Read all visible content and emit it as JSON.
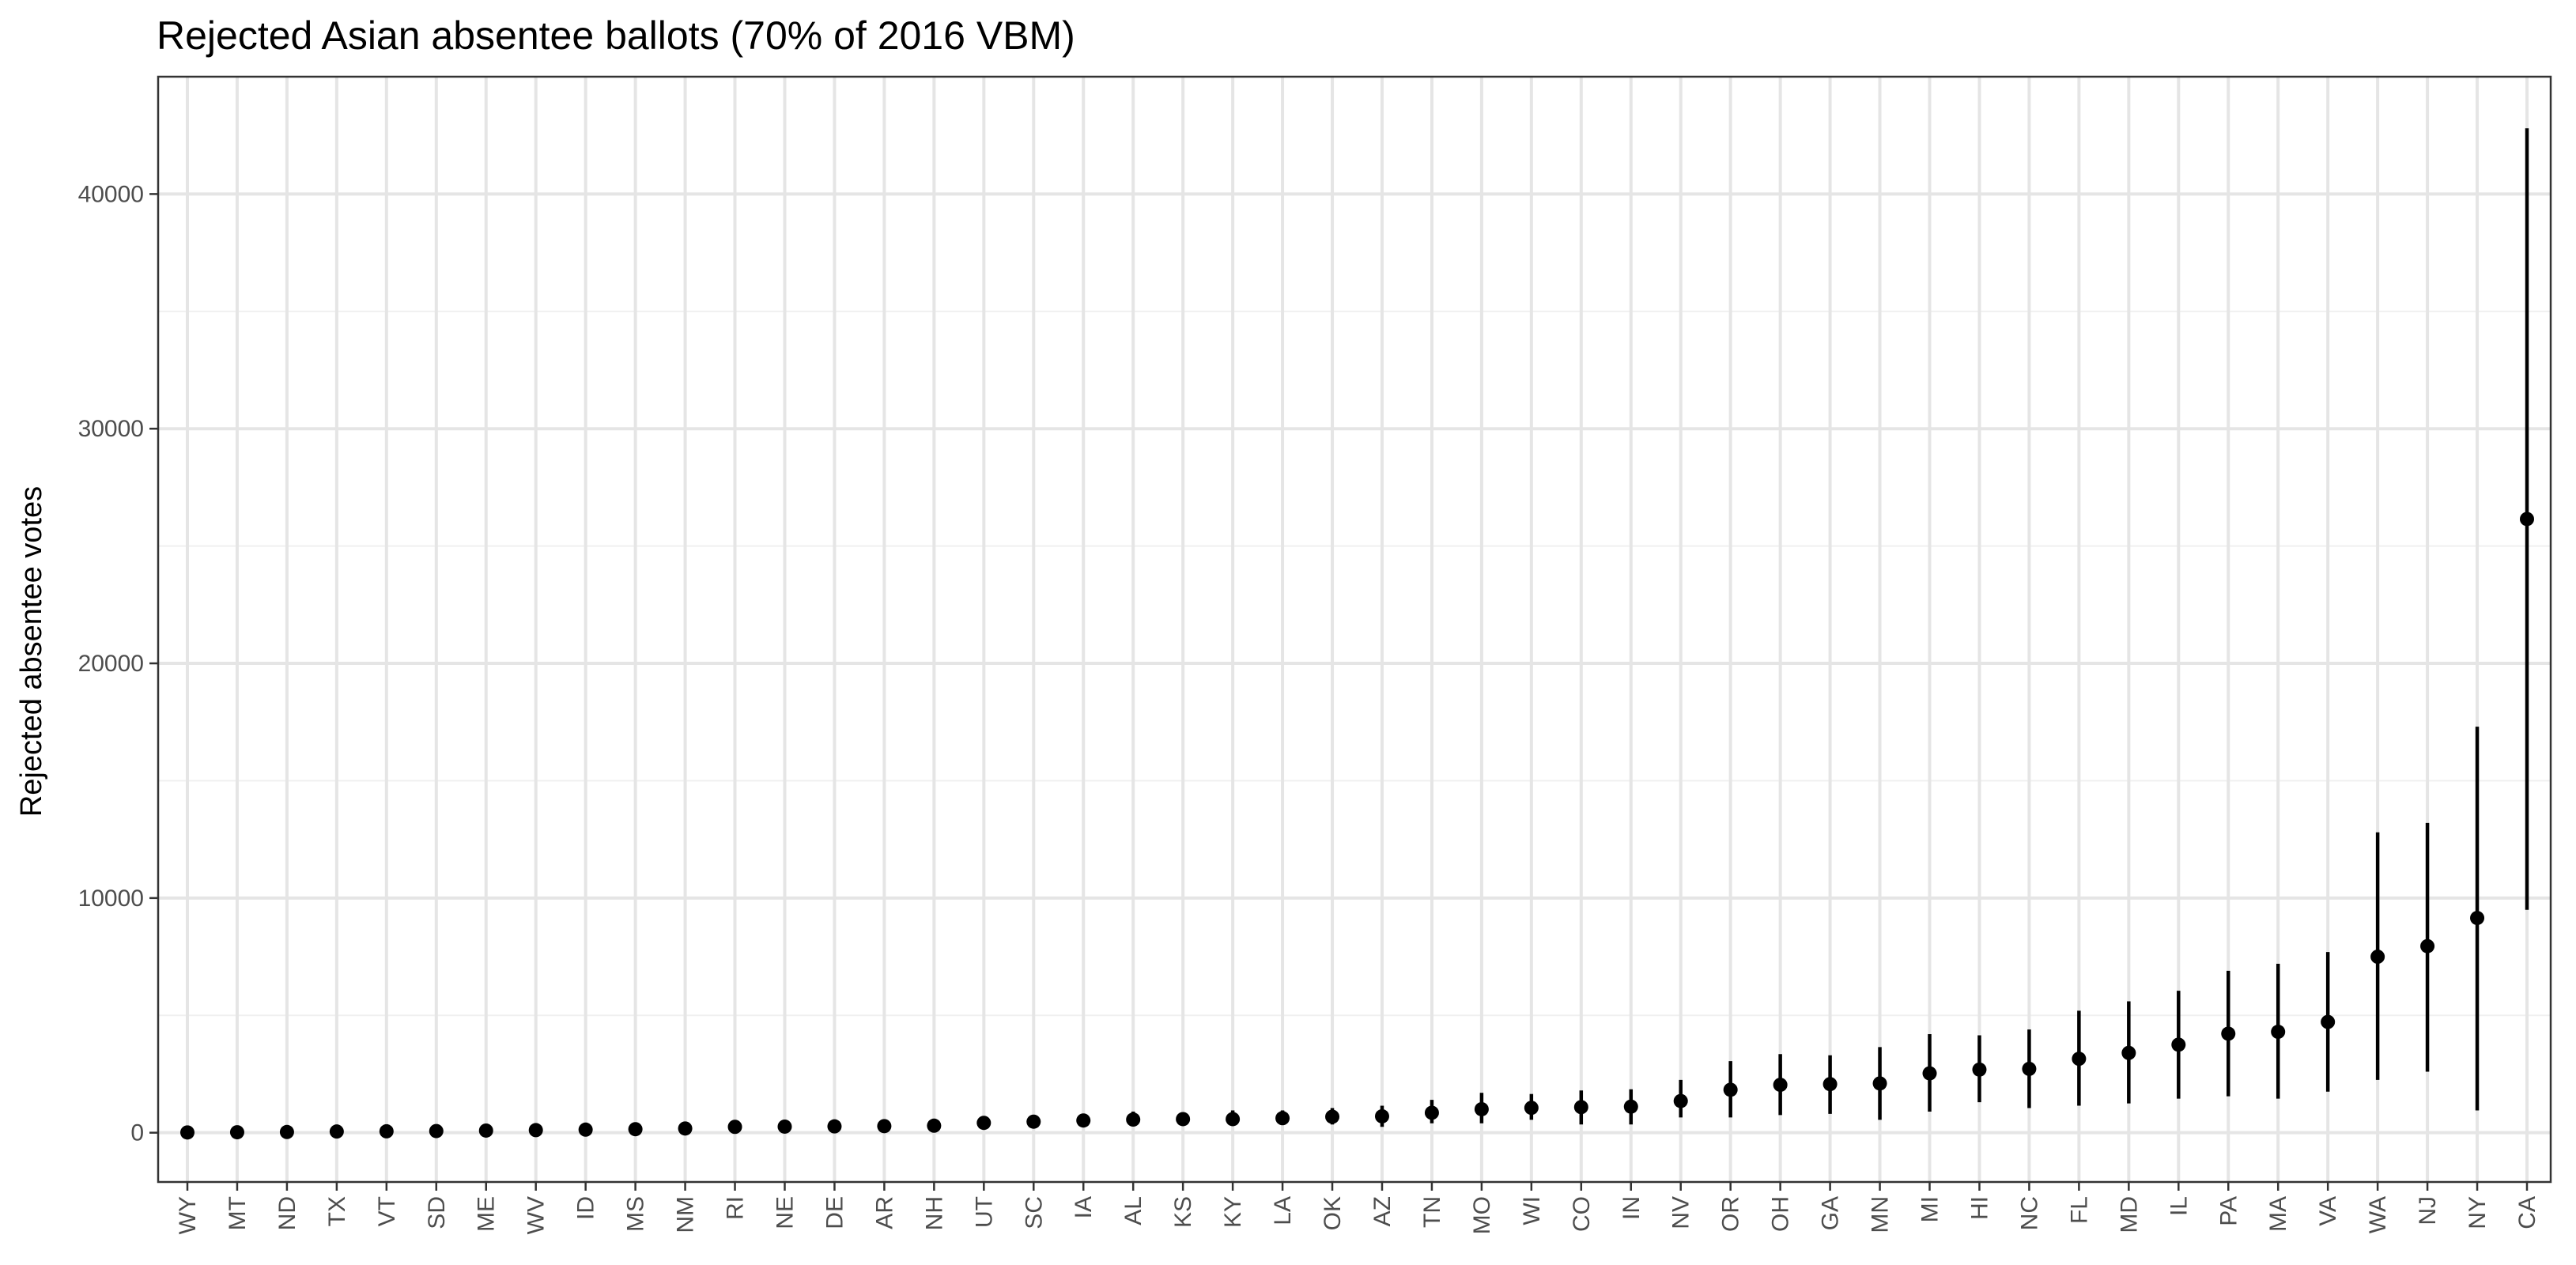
{
  "chart_data": {
    "type": "scatter",
    "title": "Rejected Asian absentee ballots (70% of 2016 VBM)",
    "xlabel": "",
    "ylabel": "Rejected absentee votes",
    "ylim": [
      -2100,
      45000
    ],
    "yticks": [
      0,
      10000,
      20000,
      30000,
      40000
    ],
    "grid": true,
    "categories": [
      "WY",
      "MT",
      "ND",
      "TX",
      "VT",
      "SD",
      "ME",
      "WV",
      "ID",
      "MS",
      "NM",
      "RI",
      "NE",
      "DE",
      "AR",
      "NH",
      "UT",
      "SC",
      "IA",
      "AL",
      "KS",
      "KY",
      "LA",
      "OK",
      "AZ",
      "TN",
      "MO",
      "WI",
      "CO",
      "IN",
      "NV",
      "OR",
      "OH",
      "GA",
      "MN",
      "MI",
      "HI",
      "NC",
      "FL",
      "MD",
      "IL",
      "PA",
      "MA",
      "VA",
      "WA",
      "NJ",
      "NY",
      "CA"
    ],
    "series": [
      {
        "values": [
          10,
          20,
          30,
          50,
          60,
          70,
          90,
          110,
          130,
          150,
          180,
          250,
          260,
          270,
          280,
          300,
          420,
          470,
          520,
          560,
          580,
          580,
          620,
          680,
          700,
          850,
          1000,
          1060,
          1090,
          1110,
          1350,
          1830,
          2040,
          2070,
          2100,
          2530,
          2690,
          2720,
          3150,
          3400,
          3750,
          4220,
          4300,
          4720,
          7500,
          7950,
          9150,
          26150
        ],
        "lower": [
          0,
          0,
          0,
          0,
          0,
          0,
          0,
          0,
          0,
          0,
          0,
          100,
          100,
          100,
          100,
          100,
          250,
          250,
          250,
          300,
          350,
          300,
          350,
          350,
          250,
          400,
          400,
          550,
          350,
          350,
          650,
          650,
          750,
          800,
          550,
          900,
          1300,
          1050,
          1150,
          1250,
          1450,
          1550,
          1450,
          1750,
          2250,
          2600,
          950,
          9500
        ],
        "upper": [
          60,
          80,
          90,
          120,
          150,
          180,
          200,
          250,
          280,
          300,
          350,
          450,
          450,
          450,
          500,
          500,
          650,
          750,
          750,
          900,
          800,
          950,
          950,
          1050,
          1150,
          1400,
          1700,
          1650,
          1800,
          1850,
          2250,
          3050,
          3350,
          3300,
          3650,
          4200,
          4150,
          4400,
          5200,
          5600,
          6050,
          6900,
          7200,
          7700,
          12800,
          13200,
          17300,
          42800
        ]
      }
    ]
  }
}
